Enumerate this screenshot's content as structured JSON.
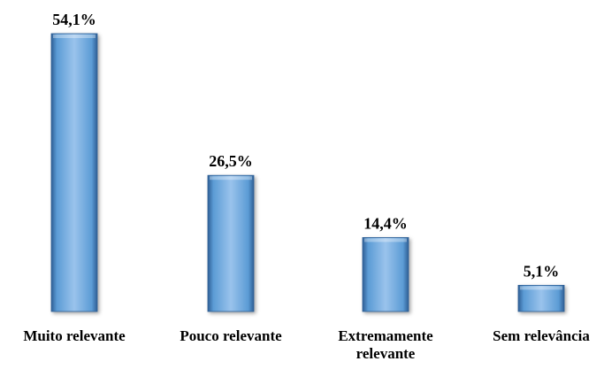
{
  "chart_data": {
    "type": "bar",
    "categories": [
      "Muito relevante",
      "Pouco relevante",
      "Extremamente relevante",
      "Sem relevância"
    ],
    "category_lines": [
      [
        "Muito relevante"
      ],
      [
        "Pouco relevante"
      ],
      [
        "Extremamente",
        "relevante"
      ],
      [
        "Sem relevância"
      ]
    ],
    "values": [
      54.1,
      26.5,
      14.4,
      5.1
    ],
    "value_labels": [
      "54,1%",
      "26,5%",
      "14,4%",
      "5,1%"
    ],
    "ylim": [
      0,
      54.1
    ],
    "grid": false,
    "bar_color": "#5b9bd5",
    "bar_highlight": "#9ac3ec",
    "bar_shadow": "#2e5f95"
  }
}
